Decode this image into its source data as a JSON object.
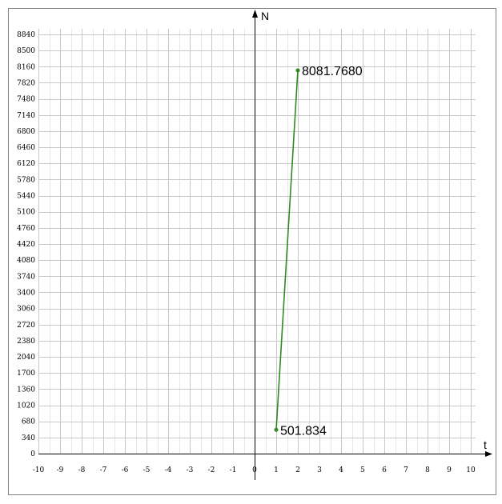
{
  "chart_data": {
    "type": "line",
    "title": "",
    "xlabel": "t",
    "ylabel": "N",
    "xlim": [
      -10,
      10
    ],
    "ylim": [
      0,
      8840
    ],
    "x_ticks": [
      -10,
      -9,
      -8,
      -7,
      -6,
      -5,
      -4,
      -3,
      -2,
      -1,
      0,
      1,
      2,
      3,
      4,
      5,
      6,
      7,
      8,
      9,
      10
    ],
    "y_ticks": [
      0,
      340,
      680,
      1020,
      1360,
      1700,
      2040,
      2380,
      2720,
      3060,
      3400,
      3740,
      4080,
      4420,
      4760,
      5100,
      5440,
      5780,
      6120,
      6460,
      6800,
      7140,
      7480,
      7820,
      8160,
      8500,
      8840
    ],
    "grid": true,
    "series": [
      {
        "color": "#2e8b1e",
        "points": [
          {
            "x": 1,
            "y": 501.834,
            "label": "501.834"
          },
          {
            "x": 2,
            "y": 8081.768,
            "label": "8081.7680"
          }
        ]
      }
    ]
  }
}
